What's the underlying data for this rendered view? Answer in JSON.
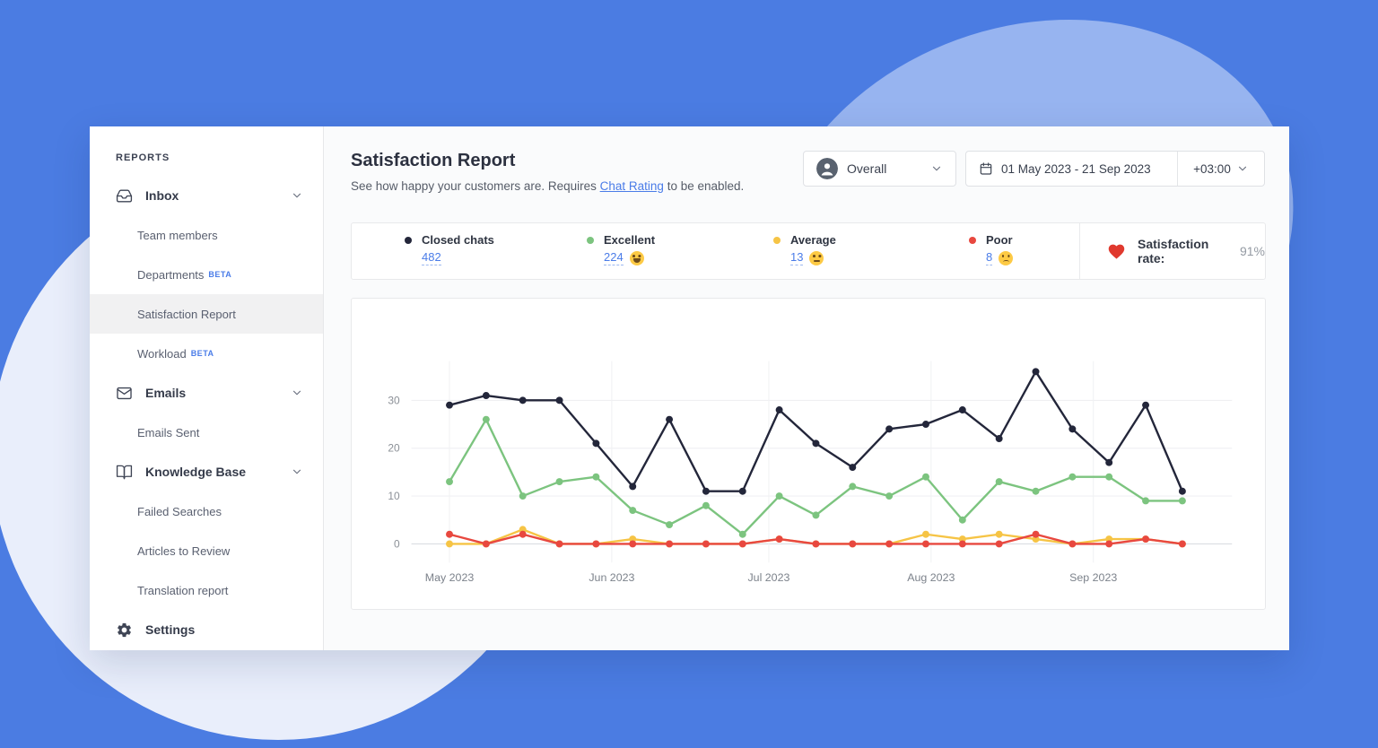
{
  "colors": {
    "page_bg": "#4b7ce2",
    "blob_light": "#97b4f0",
    "blob_pale": "#e9eefb",
    "accent_blue": "#4a7ce8",
    "series_black": "#23263a",
    "series_green": "#7cc47f",
    "series_yellow": "#f6c445",
    "series_red": "#e8483f",
    "heart_red": "#e0392e",
    "avatar_bg": "#59626f"
  },
  "sidebar": {
    "section_label": "REPORTS",
    "items": [
      {
        "label": "Inbox",
        "icon": "inbox-icon",
        "type": "parent"
      },
      {
        "label": "Team members",
        "type": "child"
      },
      {
        "label": "Departments",
        "badge": "BETA",
        "type": "child"
      },
      {
        "label": "Satisfaction Report",
        "type": "child",
        "active": true
      },
      {
        "label": "Workload",
        "badge": "BETA",
        "type": "child"
      },
      {
        "label": "Emails",
        "icon": "envelope-icon",
        "type": "parent"
      },
      {
        "label": "Emails Sent",
        "type": "child"
      },
      {
        "label": "Knowledge Base",
        "icon": "book-icon",
        "type": "parent"
      },
      {
        "label": "Failed Searches",
        "type": "child"
      },
      {
        "label": "Articles to Review",
        "type": "child"
      },
      {
        "label": "Translation report",
        "type": "child"
      },
      {
        "label": "Settings",
        "icon": "gear-icon",
        "type": "parent"
      }
    ]
  },
  "header": {
    "title": "Satisfaction Report",
    "subtitle_prefix": "See how happy your customers are. Requires ",
    "subtitle_link": "Chat Rating",
    "subtitle_suffix": " to be enabled.",
    "agent_filter": {
      "label": "Overall",
      "icon": "person-avatar-icon"
    },
    "date_range": "01 May 2023 - 21 Sep 2023",
    "timezone": "+03:00"
  },
  "legend": {
    "items": [
      {
        "label": "Closed chats",
        "value": "482",
        "color_key": "series_black",
        "emoji": null
      },
      {
        "label": "Excellent",
        "value": "224",
        "color_key": "series_green",
        "emoji": "grinning-face"
      },
      {
        "label": "Average",
        "value": "13",
        "color_key": "series_yellow",
        "emoji": "neutral-face"
      },
      {
        "label": "Poor",
        "value": "8",
        "color_key": "series_red",
        "emoji": "sad-face"
      }
    ],
    "satisfaction_label": "Satisfaction rate:",
    "satisfaction_value": "91%"
  },
  "chart_data": {
    "type": "line",
    "title": "Satisfaction Report weekly ratings",
    "x_start_date": "01 May 2023",
    "x_end_date": "21 Sep 2023",
    "x_interval": "weekly",
    "point_day_offsets": [
      0,
      7,
      14,
      21,
      28,
      35,
      42,
      49,
      56,
      63,
      70,
      77,
      84,
      91,
      98,
      105,
      112,
      119,
      126,
      133,
      140
    ],
    "x_tick_labels": [
      "May 2023",
      "Jun 2023",
      "Jul 2023",
      "Aug 2023",
      "Sep 2023"
    ],
    "x_tick_day_offsets": [
      0,
      31,
      61,
      92,
      123
    ],
    "y_ticks": [
      0,
      10,
      20,
      30
    ],
    "ylim": [
      0,
      38
    ],
    "grid": true,
    "legend_position": "top-card",
    "series": [
      {
        "name": "Excellent",
        "color_key": "series_green",
        "values": [
          13,
          26,
          10,
          13,
          14,
          7,
          4,
          8,
          2,
          10,
          6,
          12,
          10,
          14,
          5,
          13,
          11,
          14,
          14,
          9,
          9
        ],
        "total": 224
      },
      {
        "name": "Closed chats",
        "color_key": "series_black",
        "values": [
          29,
          31,
          30,
          30,
          21,
          12,
          26,
          11,
          11,
          28,
          21,
          16,
          24,
          25,
          28,
          22,
          36,
          24,
          17,
          29,
          11
        ],
        "total": 482
      },
      {
        "name": "Average",
        "color_key": "series_yellow",
        "values": [
          0,
          0,
          3,
          0,
          0,
          1,
          0,
          0,
          0,
          1,
          0,
          0,
          0,
          2,
          1,
          2,
          1,
          0,
          1,
          1,
          0
        ],
        "total": 13
      },
      {
        "name": "Poor",
        "color_key": "series_red",
        "values": [
          2,
          0,
          2,
          0,
          0,
          0,
          0,
          0,
          0,
          1,
          0,
          0,
          0,
          0,
          0,
          0,
          2,
          0,
          0,
          1,
          0
        ],
        "total": 8
      }
    ]
  }
}
